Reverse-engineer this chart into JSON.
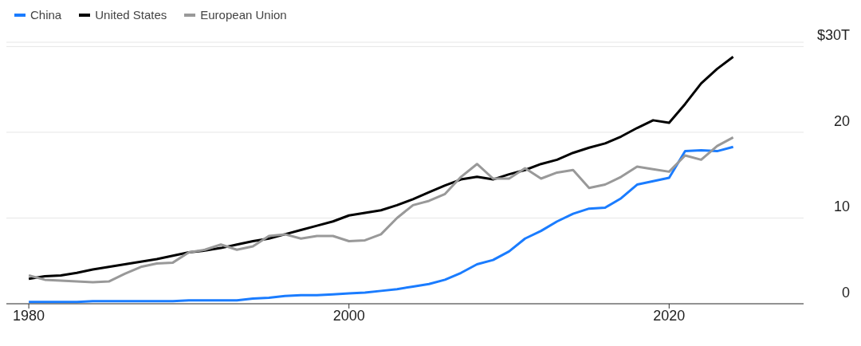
{
  "chart_data": {
    "type": "line",
    "x": [
      1980,
      1981,
      1982,
      1983,
      1984,
      1985,
      1986,
      1987,
      1988,
      1989,
      1990,
      1991,
      1992,
      1993,
      1994,
      1995,
      1996,
      1997,
      1998,
      1999,
      2000,
      2001,
      2002,
      2003,
      2004,
      2005,
      2006,
      2007,
      2008,
      2009,
      2010,
      2011,
      2012,
      2013,
      2014,
      2015,
      2016,
      2017,
      2018,
      2019,
      2020,
      2021,
      2022,
      2023,
      2024
    ],
    "series": [
      {
        "name": "China",
        "color": "#1a7cff",
        "values": [
          0.2,
          0.2,
          0.2,
          0.2,
          0.3,
          0.3,
          0.3,
          0.3,
          0.3,
          0.3,
          0.4,
          0.4,
          0.4,
          0.4,
          0.6,
          0.7,
          0.9,
          1.0,
          1.0,
          1.1,
          1.2,
          1.3,
          1.5,
          1.7,
          2.0,
          2.3,
          2.8,
          3.6,
          4.6,
          5.1,
          6.1,
          7.6,
          8.5,
          9.6,
          10.5,
          11.1,
          11.2,
          12.3,
          13.9,
          14.3,
          14.7,
          17.8,
          17.9,
          17.8,
          18.3
        ]
      },
      {
        "name": "United States",
        "color": "#000000",
        "values": [
          2.9,
          3.2,
          3.3,
          3.6,
          4.0,
          4.3,
          4.6,
          4.9,
          5.2,
          5.6,
          6.0,
          6.2,
          6.5,
          6.9,
          7.3,
          7.6,
          8.1,
          8.6,
          9.1,
          9.6,
          10.3,
          10.6,
          10.9,
          11.5,
          12.2,
          13.0,
          13.8,
          14.5,
          14.8,
          14.5,
          15.1,
          15.6,
          16.3,
          16.8,
          17.6,
          18.2,
          18.7,
          19.5,
          20.5,
          21.4,
          21.1,
          23.3,
          25.7,
          27.4,
          28.8
        ]
      },
      {
        "name": "European Union",
        "color": "#999999",
        "values": [
          3.3,
          2.8,
          2.7,
          2.6,
          2.5,
          2.6,
          3.5,
          4.3,
          4.7,
          4.8,
          6.0,
          6.3,
          6.9,
          6.3,
          6.7,
          7.9,
          8.1,
          7.6,
          7.9,
          7.9,
          7.3,
          7.4,
          8.1,
          10.0,
          11.5,
          12.0,
          12.8,
          14.8,
          16.3,
          14.6,
          14.6,
          15.8,
          14.6,
          15.3,
          15.6,
          13.5,
          13.9,
          14.8,
          16.0,
          15.7,
          15.4,
          17.3,
          16.8,
          18.4,
          19.4
        ]
      }
    ],
    "xlim": [
      1978.6,
      2028.4
    ],
    "xticks": [
      1980,
      2000,
      2020
    ],
    "ylim": [
      0,
      30.5
    ],
    "yticks": [
      0,
      10,
      20,
      {
        "value": 30,
        "label": "$30T"
      }
    ],
    "grid": "y",
    "legend": "top left",
    "marker": "none",
    "line_style": "solid"
  }
}
